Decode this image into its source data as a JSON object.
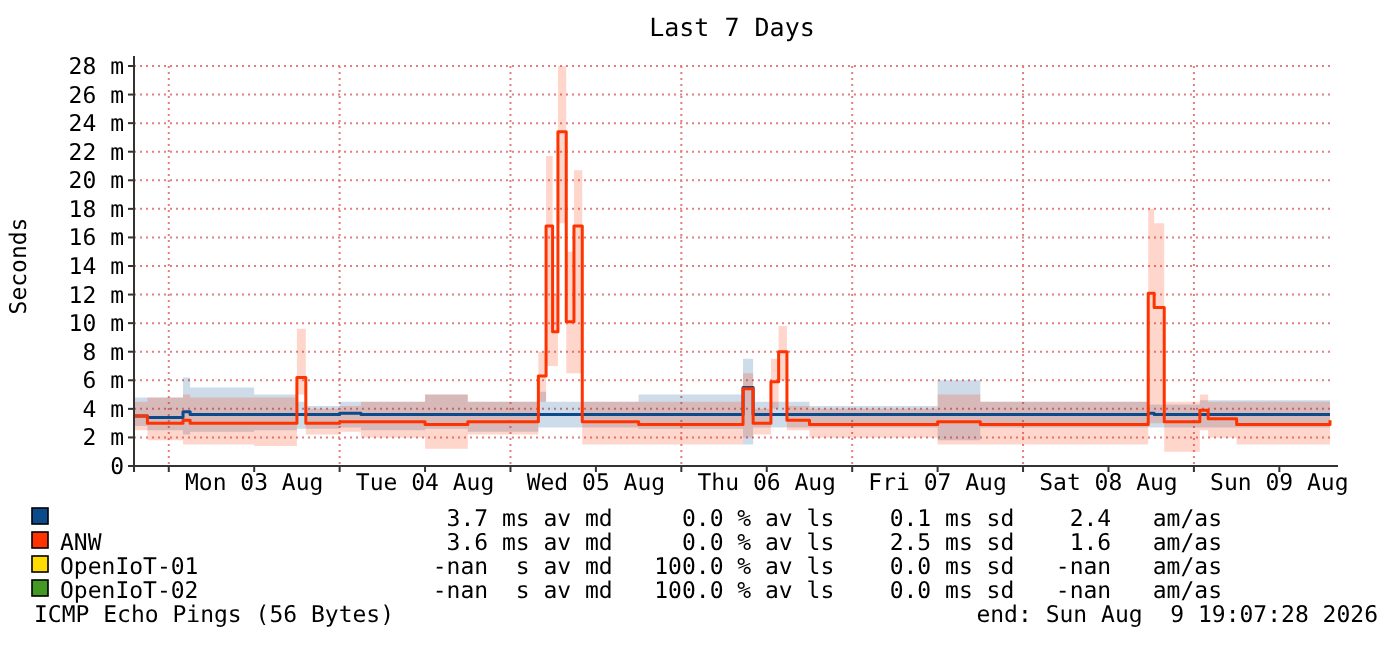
{
  "chart_data": {
    "type": "step",
    "title": "Last 7 Days",
    "ylabel": "Seconds",
    "x": [
      "2026-08-02T19:07",
      "2026-08-02T21:00",
      "2026-08-03T02:00",
      "2026-08-03T03:00",
      "2026-08-03T12:00",
      "2026-08-03T18:00",
      "2026-08-03T19:15",
      "2026-08-04T00:00",
      "2026-08-04T03:00",
      "2026-08-04T12:00",
      "2026-08-04T18:00",
      "2026-08-05T03:55",
      "2026-08-05T05:00",
      "2026-08-05T05:55",
      "2026-08-05T06:40",
      "2026-08-05T07:50",
      "2026-08-05T08:55",
      "2026-08-05T10:05",
      "2026-08-05T18:00",
      "2026-08-06T08:40",
      "2026-08-06T10:05",
      "2026-08-06T12:35",
      "2026-08-06T13:40",
      "2026-08-06T14:50",
      "2026-08-06T18:00",
      "2026-08-07T12:00",
      "2026-08-07T18:00",
      "2026-08-08T17:35",
      "2026-08-08T18:25",
      "2026-08-08T19:50",
      "2026-08-09T00:50",
      "2026-08-09T02:00",
      "2026-08-09T06:00",
      "2026-08-09T19:07"
    ],
    "series": [
      {
        "color": "#0b4a8b",
        "values": [
          3.5,
          3.4,
          3.8,
          3.6,
          3.6,
          3.6,
          3.6,
          3.7,
          3.6,
          3.6,
          3.6,
          3.6,
          3.6,
          3.6,
          3.6,
          3.6,
          3.6,
          3.6,
          3.6,
          5.5,
          3.6,
          3.6,
          3.6,
          3.6,
          3.6,
          3.6,
          3.6,
          3.7,
          3.6,
          3.6,
          3.6,
          3.6,
          3.6,
          3.6
        ],
        "lower": [
          2.8,
          2.5,
          2.2,
          2.4,
          2.5,
          2.6,
          2.6,
          2.7,
          2.5,
          2.6,
          2.4,
          2.7,
          2.7,
          2.7,
          2.7,
          2.7,
          2.7,
          2.7,
          2.6,
          1.5,
          2.7,
          2.7,
          2.7,
          2.7,
          2.7,
          1.8,
          2.7,
          2.7,
          2.7,
          2.7,
          2.7,
          2.7,
          2.7,
          2.7
        ],
        "upper": [
          4.8,
          4.8,
          6.2,
          5.5,
          5.0,
          4.5,
          4.2,
          4.5,
          4.5,
          5.0,
          4.5,
          5.2,
          4.5,
          4.5,
          4.5,
          4.5,
          4.5,
          4.5,
          5.0,
          7.5,
          4.5,
          4.5,
          4.5,
          4.5,
          4.2,
          6.0,
          4.5,
          4.3,
          4.3,
          4.3,
          4.6,
          4.6,
          4.6,
          5.0
        ]
      },
      {
        "name": "ANW",
        "color": "#ff3300",
        "values": [
          3.5,
          3.0,
          3.2,
          3.0,
          3.0,
          6.2,
          3.0,
          3.1,
          3.1,
          2.9,
          3.1,
          6.3,
          16.8,
          9.4,
          23.4,
          10.1,
          16.8,
          3.1,
          2.9,
          5.4,
          3.0,
          5.9,
          8.0,
          3.2,
          2.9,
          3.1,
          2.9,
          12.1,
          11.1,
          3.1,
          3.9,
          3.3,
          2.9,
          3.2
        ],
        "lower": [
          2.5,
          1.8,
          1.5,
          1.5,
          1.4,
          5.0,
          2.2,
          2.4,
          2.0,
          1.2,
          2.2,
          4.5,
          7.0,
          7.0,
          17.0,
          6.5,
          6.5,
          1.5,
          1.5,
          2.0,
          2.2,
          4.0,
          6.0,
          2.5,
          2.0,
          1.5,
          1.5,
          3.0,
          3.0,
          1.0,
          2.5,
          2.0,
          1.5,
          2.2
        ],
        "upper": [
          4.5,
          4.8,
          5.0,
          4.8,
          4.8,
          9.6,
          4.0,
          4.2,
          4.5,
          5.0,
          4.5,
          8.0,
          21.7,
          12.0,
          28.0,
          15.0,
          20.7,
          4.5,
          4.5,
          6.5,
          4.0,
          7.5,
          9.8,
          4.2,
          4.0,
          5.0,
          4.5,
          18.0,
          17.0,
          4.5,
          5.0,
          4.5,
          4.5,
          4.0
        ]
      },
      {
        "name": "OpenIoT-01",
        "color": "#ffdd00",
        "values": [
          null,
          null,
          null,
          null,
          null,
          null,
          null,
          null,
          null,
          null,
          null,
          null,
          null,
          null,
          null,
          null,
          null,
          null,
          null,
          null,
          null,
          null,
          null,
          null,
          null,
          null,
          null,
          null,
          null,
          null,
          null,
          null,
          null,
          null
        ]
      },
      {
        "name": "OpenIoT-02",
        "color": "#449922",
        "values": [
          null,
          null,
          null,
          null,
          null,
          null,
          null,
          null,
          null,
          null,
          null,
          null,
          null,
          null,
          null,
          null,
          null,
          null,
          null,
          null,
          null,
          null,
          null,
          null,
          null,
          null,
          null,
          null,
          null,
          null,
          null,
          null,
          null,
          null
        ]
      }
    ],
    "xlim": [
      "2026-08-02T19:07",
      "2026-08-09T19:07"
    ],
    "xticks": [
      {
        "value": "2026-08-03T00:00",
        "label": null
      },
      {
        "value": "2026-08-03T12:00",
        "label": "Mon 03 Aug"
      },
      {
        "value": "2026-08-04T00:00",
        "label": null
      },
      {
        "value": "2026-08-04T12:00",
        "label": "Tue 04 Aug"
      },
      {
        "value": "2026-08-05T00:00",
        "label": null
      },
      {
        "value": "2026-08-05T12:00",
        "label": "Wed 05 Aug"
      },
      {
        "value": "2026-08-06T00:00",
        "label": null
      },
      {
        "value": "2026-08-06T12:00",
        "label": "Thu 06 Aug"
      },
      {
        "value": "2026-08-07T00:00",
        "label": null
      },
      {
        "value": "2026-08-07T12:00",
        "label": "Fri 07 Aug"
      },
      {
        "value": "2026-08-08T00:00",
        "label": null
      },
      {
        "value": "2026-08-08T12:00",
        "label": "Sat 08 Aug"
      },
      {
        "value": "2026-08-09T00:00",
        "label": null
      },
      {
        "value": "2026-08-09T12:00",
        "label": "Sun 09 Aug"
      }
    ],
    "ylim": [
      0,
      28
    ],
    "yticks": [
      0,
      {
        "value": 2,
        "label": "2 m"
      },
      {
        "value": 4,
        "label": "4 m"
      },
      {
        "value": 6,
        "label": "6 m"
      },
      {
        "value": 8,
        "label": "8 m"
      },
      {
        "value": 10,
        "label": "10 m"
      },
      {
        "value": 12,
        "label": "12 m"
      },
      {
        "value": 14,
        "label": "14 m"
      },
      {
        "value": 16,
        "label": "16 m"
      },
      {
        "value": 18,
        "label": "18 m"
      },
      {
        "value": 20,
        "label": "20 m"
      },
      {
        "value": 22,
        "label": "22 m"
      },
      {
        "value": 24,
        "label": "24 m"
      },
      {
        "value": 26,
        "label": "26 m"
      },
      {
        "value": 28,
        "label": "28 m"
      }
    ],
    "grid": true,
    "legend": "bottom",
    "annotations": [
      "3.7 ms av md     0.0 % av ls    0.1 ms sd    2.4   am/as",
      "3.6 ms av md     0.0 % av ls    2.5 ms sd    1.6   am/as",
      "-nan  s av md   100.0 % av ls    0.0 ms sd   -nan   am/as",
      "-nan  s av md   100.0 % av ls    0.0 ms sd   -nan   am/as",
      "ICMP Echo Pings (56 Bytes)",
      "end: Sun Aug  9 19:07:28 2026"
    ]
  }
}
